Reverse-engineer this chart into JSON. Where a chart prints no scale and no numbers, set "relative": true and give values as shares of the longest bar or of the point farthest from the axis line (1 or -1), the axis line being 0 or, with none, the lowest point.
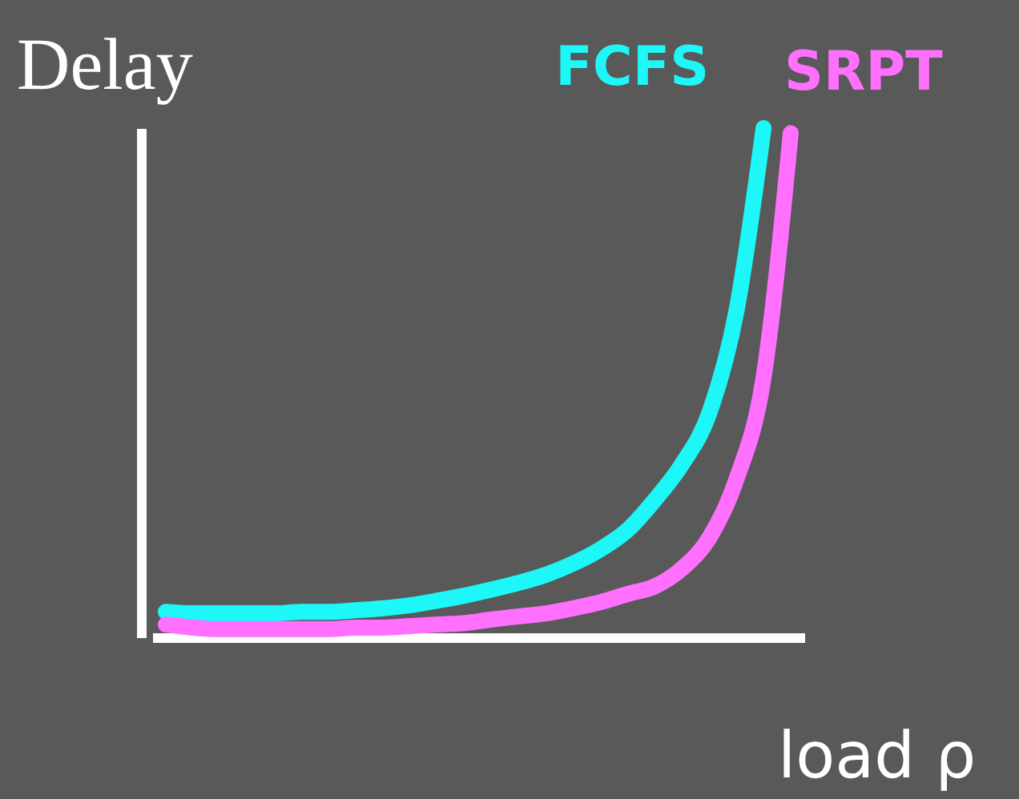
{
  "chart_data": {
    "type": "line",
    "relative": true,
    "ylabel": "Delay",
    "xlabel": "load ρ",
    "line_style": "solid",
    "categories": [
      null,
      null,
      null,
      null,
      null,
      null,
      null,
      null,
      null,
      null,
      null,
      null,
      null,
      null,
      null,
      null,
      null,
      null,
      null,
      null,
      null,
      null,
      null,
      null
    ],
    "series": [
      {
        "name": "FCFS",
        "color": "#1ef7f7",
        "values": [
          0.05,
          0.047,
          0.047,
          0.047,
          0.047,
          0.05,
          0.05,
          0.053,
          0.057,
          0.063,
          0.072,
          0.082,
          0.094,
          0.107,
          0.123,
          0.145,
          0.173,
          0.211,
          0.27,
          0.34,
          0.44,
          0.64,
          1.0,
          null
        ]
      },
      {
        "name": "SRPT",
        "color": "#ff70ff",
        "values": [
          0.025,
          0.019,
          0.016,
          0.016,
          0.016,
          0.016,
          0.016,
          0.019,
          0.019,
          0.022,
          0.025,
          0.028,
          0.035,
          0.041,
          0.047,
          0.057,
          0.069,
          0.085,
          0.1,
          0.135,
          0.195,
          0.31,
          0.51,
          0.99
        ]
      }
    ]
  }
}
